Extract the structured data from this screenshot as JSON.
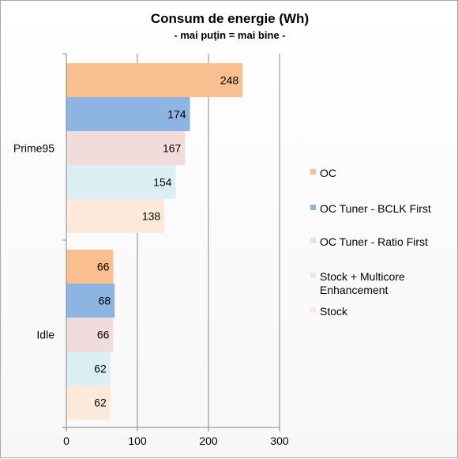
{
  "chart_data": {
    "type": "bar",
    "orientation": "horizontal",
    "title": "Consum de energie (Wh)",
    "subtitle": "- mai puţin = mai bine -",
    "categories": [
      "Prime95",
      "Idle"
    ],
    "series": [
      {
        "name": "OC",
        "color": "#f9bf8f",
        "values": [
          248,
          66
        ]
      },
      {
        "name": "OC Tuner - BCLK First",
        "color": "#8eb4e3",
        "values": [
          174,
          68
        ]
      },
      {
        "name": "OC Tuner - Ratio First",
        "color": "#f1dcdb",
        "values": [
          167,
          66
        ]
      },
      {
        "name": [
          "Stock + Multicore",
          "Enhancement"
        ],
        "color": "#dbeef3",
        "values": [
          154,
          62
        ]
      },
      {
        "name": "Stock",
        "color": "#fde9d9",
        "values": [
          138,
          62
        ]
      }
    ],
    "xlim": [
      0,
      300
    ],
    "xticks": [
      0,
      100,
      200,
      300
    ],
    "grid": true,
    "legend_position": "right",
    "data_labels": true
  }
}
